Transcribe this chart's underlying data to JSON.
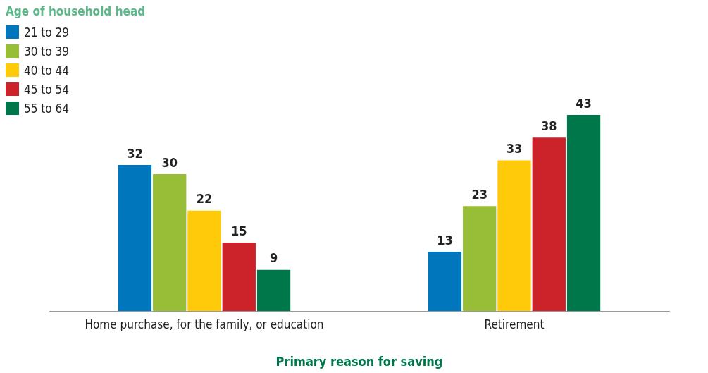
{
  "chart_data": {
    "type": "bar",
    "categories": [
      "Home purchase, for the family, or education",
      "Retirement"
    ],
    "legend_title": "Age of household head",
    "xlabel": "Primary reason for saving",
    "legend": "top left",
    "data_labels": true,
    "grid": false,
    "series": [
      {
        "name": "21 to 29",
        "color": "#0077bc",
        "values": [
          32,
          13
        ]
      },
      {
        "name": "30 to 39",
        "color": "#98bd37",
        "values": [
          30,
          23
        ]
      },
      {
        "name": "40 to 44",
        "color": "#ffca0a",
        "values": [
          22,
          33
        ]
      },
      {
        "name": "45 to 54",
        "color": "#cc2229",
        "values": [
          15,
          38
        ]
      },
      {
        "name": "55 to 64",
        "color": "#00774a",
        "values": [
          9,
          43
        ]
      }
    ]
  }
}
